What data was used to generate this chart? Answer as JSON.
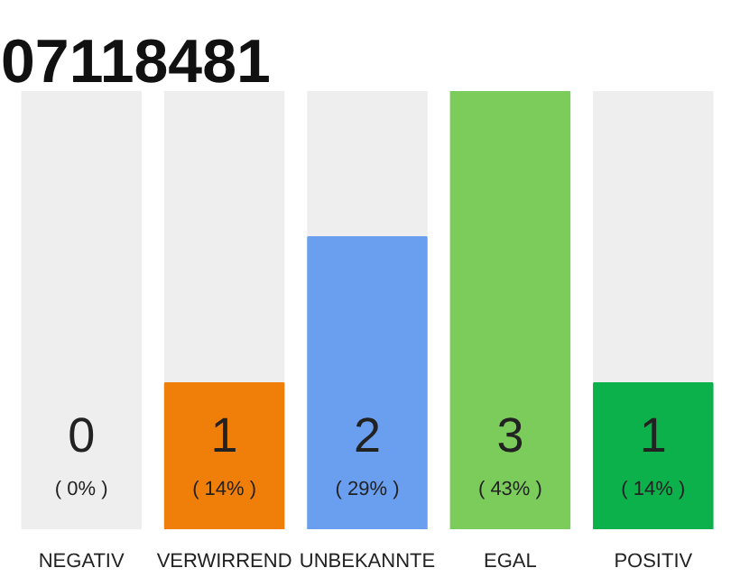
{
  "chart_data": {
    "type": "bar",
    "title": "07118481",
    "categories": [
      "NEGATIV",
      "VERWIRREND",
      "UNBEKANNTE",
      "EGAL",
      "POSITIV"
    ],
    "values": [
      0,
      1,
      2,
      3,
      1
    ],
    "colors": [
      "#eeeeee",
      "#f07f0a",
      "#6a9ff0",
      "#7ccc5c",
      "#0db14b"
    ],
    "data_labels": true,
    "annotations": [
      "( 0% )",
      "( 14% )",
      "( 29% )",
      "( 43% )",
      "( 14% )"
    ],
    "tick_labels": "x"
  }
}
